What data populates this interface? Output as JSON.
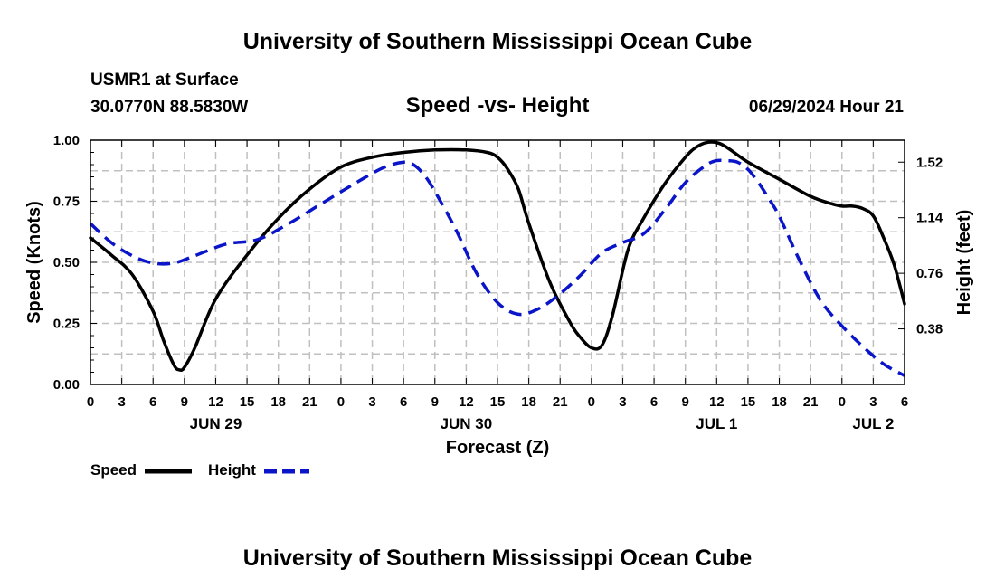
{
  "header": {
    "title_top": "University of Southern Mississippi Ocean Cube",
    "title_bottom": "University of Southern Mississippi Ocean Cube",
    "station": "USMR1 at Surface",
    "coords": "30.0770N  88.5830W",
    "datetime": "06/29/2024 Hour 21"
  },
  "legend": {
    "speed_label": "Speed",
    "height_label": "Height"
  },
  "colors": {
    "speed": "#000000",
    "height": "#0a14c8",
    "grid": "#c0c0c0"
  },
  "chart_data": {
    "type": "line",
    "title": "Speed -vs- Height",
    "xlabel": "Forecast (Z)",
    "ylabel_left": "Speed (Knots)",
    "ylabel_right": "Height (feet)",
    "x_unit": "hours since Jun 29 00Z",
    "xlim": [
      0,
      78
    ],
    "ylim_left": [
      0,
      1.0
    ],
    "ylim_right": [
      0,
      1.67
    ],
    "x_tick_values": [
      0,
      3,
      6,
      9,
      12,
      15,
      18,
      21,
      24,
      27,
      30,
      33,
      36,
      39,
      42,
      45,
      48,
      51,
      54,
      57,
      60,
      63,
      66,
      69,
      72,
      75,
      78
    ],
    "x_tick_labels": [
      "0",
      "3",
      "6",
      "9",
      "12",
      "15",
      "18",
      "21",
      "0",
      "3",
      "6",
      "9",
      "12",
      "15",
      "18",
      "21",
      "0",
      "3",
      "6",
      "9",
      "12",
      "15",
      "18",
      "21",
      "0",
      "3",
      "6"
    ],
    "y_left_ticks": [
      0.0,
      0.25,
      0.5,
      0.75,
      1.0
    ],
    "y_left_tick_labels": [
      "0.00",
      "0.25",
      "0.50",
      "0.75",
      "1.00"
    ],
    "y_right_ticks": [
      0.38,
      0.76,
      1.14,
      1.52
    ],
    "y_right_tick_labels": [
      "0.38",
      "0.76",
      "1.14",
      "1.52"
    ],
    "date_labels": [
      {
        "x": 12,
        "label": "JUN 29"
      },
      {
        "x": 36,
        "label": "JUN 30"
      },
      {
        "x": 60,
        "label": "JUL 1"
      },
      {
        "x": 75,
        "label": "JUL 2"
      }
    ],
    "grid": true,
    "series": [
      {
        "name": "Speed",
        "axis": "left",
        "style": "solid",
        "x": [
          0,
          2,
          4,
          6,
          7,
          8,
          8.5,
          9,
          10,
          12,
          15,
          18,
          21,
          24,
          27,
          30,
          33,
          36,
          38,
          39,
          40,
          41,
          42,
          44,
          46,
          47,
          48,
          49,
          50,
          51.5,
          53,
          55,
          57,
          58,
          59,
          60,
          61,
          63,
          66,
          69,
          71,
          72,
          73,
          74,
          75,
          76,
          77,
          78
        ],
        "y": [
          0.6,
          0.53,
          0.45,
          0.3,
          0.18,
          0.08,
          0.06,
          0.07,
          0.15,
          0.35,
          0.53,
          0.68,
          0.8,
          0.89,
          0.93,
          0.95,
          0.96,
          0.96,
          0.95,
          0.93,
          0.88,
          0.8,
          0.66,
          0.42,
          0.25,
          0.19,
          0.15,
          0.16,
          0.28,
          0.55,
          0.68,
          0.82,
          0.93,
          0.97,
          0.99,
          0.99,
          0.97,
          0.91,
          0.84,
          0.77,
          0.74,
          0.73,
          0.73,
          0.72,
          0.69,
          0.6,
          0.49,
          0.33
        ]
      },
      {
        "name": "Height",
        "axis": "right",
        "style": "dashed",
        "x": [
          0,
          2,
          4,
          6,
          8,
          10,
          13,
          16,
          19,
          22,
          25,
          28,
          30,
          31,
          32,
          33,
          35,
          37,
          39,
          41,
          43,
          45,
          47,
          49,
          51,
          53,
          55,
          57,
          59,
          60,
          61,
          62,
          63,
          64,
          65,
          66,
          68,
          70,
          72,
          74,
          76,
          78
        ],
        "y": [
          1.1,
          0.97,
          0.88,
          0.83,
          0.83,
          0.88,
          0.96,
          0.99,
          1.1,
          1.23,
          1.36,
          1.48,
          1.52,
          1.5,
          1.43,
          1.32,
          1.06,
          0.76,
          0.56,
          0.48,
          0.52,
          0.62,
          0.75,
          0.9,
          0.97,
          1.03,
          1.19,
          1.38,
          1.5,
          1.53,
          1.53,
          1.52,
          1.47,
          1.38,
          1.27,
          1.15,
          0.84,
          0.57,
          0.4,
          0.26,
          0.14,
          0.06
        ]
      }
    ]
  }
}
